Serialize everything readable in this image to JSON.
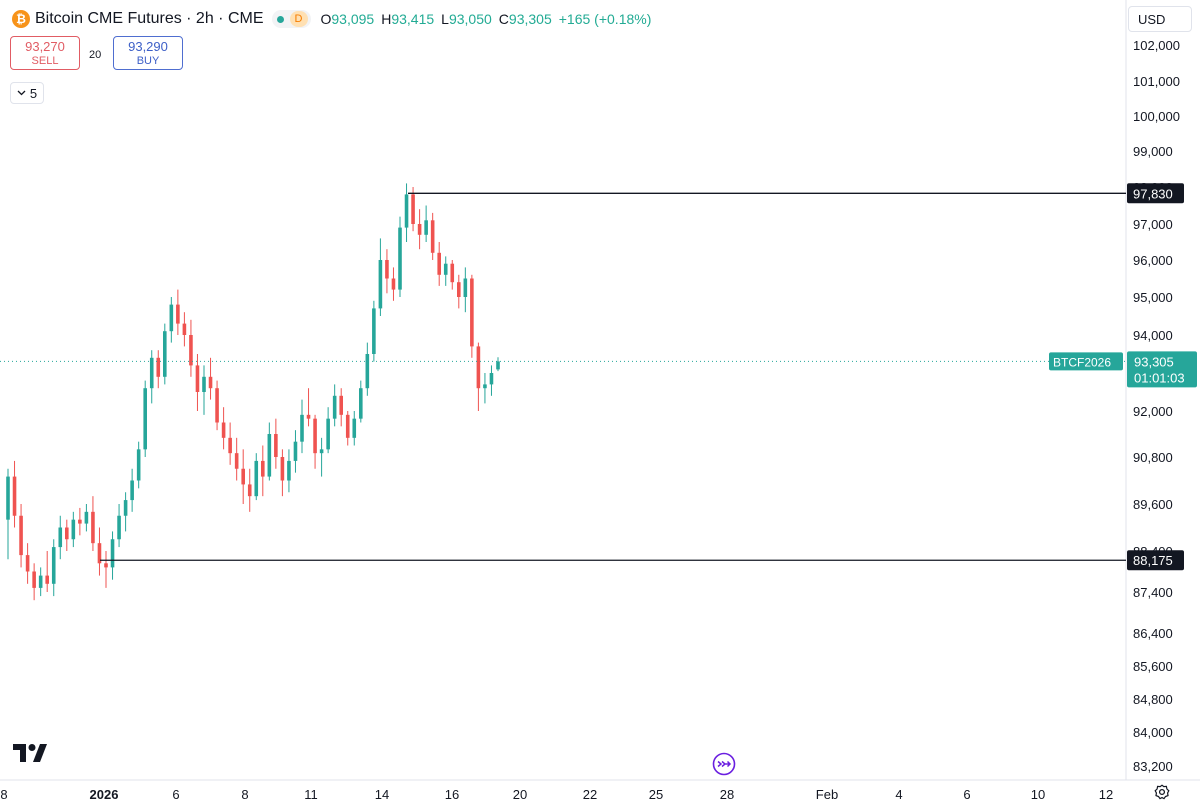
{
  "header": {
    "title": "Bitcoin CME Futures · 2h · CME",
    "logo_glyph": "₿",
    "badge_d": "D",
    "ohlc": {
      "o_label": "O",
      "o": "93,095",
      "h_label": "H",
      "h": "93,415",
      "l_label": "L",
      "l": "93,050",
      "c_label": "C",
      "c": "93,305",
      "change": "+165 (+0.18%)"
    }
  },
  "trade": {
    "sell_price": "93,270",
    "sell_label": "SELL",
    "buy_price": "93,290",
    "buy_label": "BUY",
    "spread": "20"
  },
  "indicators_toggle": "5",
  "currency": "USD",
  "colors": {
    "up": "#26a69a",
    "down": "#ef5350",
    "line": "#131722",
    "price_tag": "#26a69a"
  },
  "icons": {
    "logo": "tradingview-logo-icon",
    "goto": "goto-realtime-icon",
    "settings": "gear-icon"
  },
  "chart_data": {
    "type": "candlestick",
    "x_ticks": [
      "8",
      "2026",
      "6",
      "8",
      "11",
      "14",
      "16",
      "20",
      "22",
      "25",
      "28",
      "Feb",
      "4",
      "6",
      "10",
      "12"
    ],
    "y_ticks": [
      "102,000",
      "101,000",
      "100,000",
      "99,000",
      "98,000",
      "97,000",
      "96,000",
      "95,000",
      "94,000",
      "92,000",
      "90,800",
      "89,600",
      "88,400",
      "87,400",
      "86,400",
      "85,600",
      "84,800",
      "84,000",
      "83,200"
    ],
    "horizontal_lines": [
      {
        "price": 97830,
        "label": "97,830"
      },
      {
        "price": 88175,
        "label": "88,175"
      }
    ],
    "current_price": {
      "symbol": "BTCF2026",
      "price": "93,305",
      "countdown": "01:01:03",
      "value": 93305
    },
    "series": [
      {
        "columns": [
          "open",
          "high",
          "low",
          "close"
        ],
        "values": [
          [
            89200,
            90500,
            88200,
            90300
          ],
          [
            90300,
            90700,
            89000,
            89300
          ],
          [
            89300,
            89600,
            88000,
            88300
          ],
          [
            88300,
            88600,
            87600,
            87900
          ],
          [
            87900,
            88100,
            87200,
            87500
          ],
          [
            87500,
            88000,
            87300,
            87800
          ],
          [
            87800,
            88400,
            87400,
            87600
          ],
          [
            87600,
            88700,
            87300,
            88500
          ],
          [
            88500,
            89300,
            88200,
            89000
          ],
          [
            89000,
            89200,
            88400,
            88700
          ],
          [
            88700,
            89400,
            88500,
            89200
          ],
          [
            89200,
            89500,
            88800,
            89100
          ],
          [
            89100,
            89600,
            88900,
            89400
          ],
          [
            89400,
            89800,
            88400,
            88600
          ],
          [
            88600,
            89000,
            87800,
            88100
          ],
          [
            88100,
            88400,
            87500,
            88000
          ],
          [
            88000,
            88900,
            87700,
            88700
          ],
          [
            88700,
            89600,
            88500,
            89300
          ],
          [
            89300,
            89900,
            88900,
            89700
          ],
          [
            89700,
            90500,
            89400,
            90200
          ],
          [
            90200,
            91200,
            90000,
            91000
          ],
          [
            91000,
            92800,
            90800,
            92600
          ],
          [
            92600,
            93600,
            92200,
            93400
          ],
          [
            93400,
            93600,
            92600,
            92900
          ],
          [
            92900,
            94300,
            92700,
            94100
          ],
          [
            94100,
            95000,
            93800,
            94800
          ],
          [
            94800,
            95200,
            94000,
            94300
          ],
          [
            94300,
            94600,
            93700,
            94000
          ],
          [
            94000,
            94400,
            92900,
            93200
          ],
          [
            93200,
            93500,
            92000,
            92500
          ],
          [
            92500,
            93200,
            91900,
            92900
          ],
          [
            92900,
            93400,
            92300,
            92600
          ],
          [
            92600,
            92800,
            91500,
            91700
          ],
          [
            91700,
            92100,
            91000,
            91300
          ],
          [
            91300,
            91700,
            90600,
            90900
          ],
          [
            90900,
            91300,
            90200,
            90500
          ],
          [
            90500,
            91000,
            89600,
            90100
          ],
          [
            90100,
            90500,
            89400,
            89800
          ],
          [
            89800,
            90900,
            89700,
            90700
          ],
          [
            90700,
            91100,
            89800,
            90300
          ],
          [
            90300,
            91700,
            90200,
            91400
          ],
          [
            91400,
            91800,
            90500,
            90800
          ],
          [
            90800,
            91000,
            89800,
            90200
          ],
          [
            90200,
            91000,
            89900,
            90700
          ],
          [
            90700,
            91500,
            90400,
            91200
          ],
          [
            91200,
            92300,
            90900,
            91900
          ],
          [
            91900,
            92600,
            91600,
            91800
          ],
          [
            91800,
            91900,
            90500,
            90900
          ],
          [
            90900,
            91300,
            90300,
            91000
          ],
          [
            91000,
            92100,
            90900,
            91800
          ],
          [
            91800,
            92700,
            91600,
            92400
          ],
          [
            92400,
            92600,
            91600,
            91900
          ],
          [
            91900,
            92000,
            91100,
            91300
          ],
          [
            91300,
            92000,
            91100,
            91800
          ],
          [
            91800,
            92800,
            91700,
            92600
          ],
          [
            92600,
            93800,
            92400,
            93500
          ],
          [
            93500,
            94900,
            93300,
            94700
          ],
          [
            94700,
            96600,
            94500,
            96000
          ],
          [
            96000,
            96300,
            95100,
            95500
          ],
          [
            95500,
            95800,
            94900,
            95200
          ],
          [
            95200,
            97200,
            95000,
            96900
          ],
          [
            96900,
            98100,
            96500,
            97800
          ],
          [
            97800,
            98000,
            96800,
            97000
          ],
          [
            97000,
            97400,
            96300,
            96700
          ],
          [
            96700,
            97500,
            96500,
            97100
          ],
          [
            97100,
            97300,
            96000,
            96200
          ],
          [
            96200,
            96500,
            95300,
            95600
          ],
          [
            95600,
            96100,
            95300,
            95900
          ],
          [
            95900,
            96000,
            95200,
            95400
          ],
          [
            95400,
            95600,
            94700,
            95000
          ],
          [
            95000,
            95800,
            94600,
            95500
          ],
          [
            95500,
            95600,
            93400,
            93700
          ],
          [
            93700,
            93800,
            92000,
            92600
          ],
          [
            92600,
            93000,
            92200,
            92700
          ],
          [
            92700,
            93200,
            92400,
            93000
          ],
          [
            93095,
            93415,
            93050,
            93305
          ]
        ]
      }
    ]
  }
}
